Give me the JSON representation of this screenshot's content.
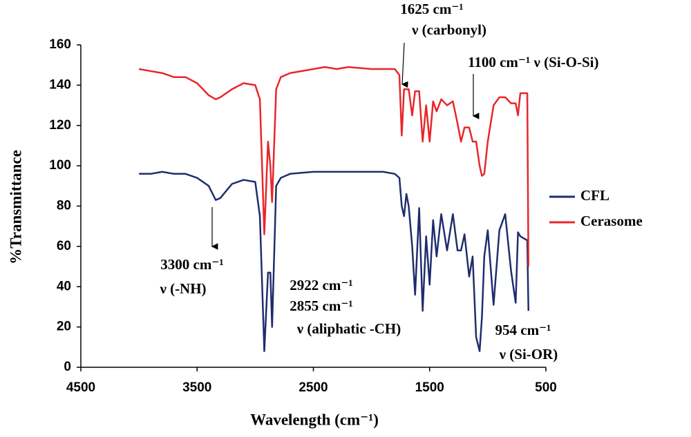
{
  "chart_data": {
    "type": "line",
    "xlabel": "Wavelength (cm⁻¹)",
    "ylabel": "%Transmittance",
    "x": [
      4000,
      3900,
      3800,
      3700,
      3600,
      3500,
      3400,
      3340,
      3300,
      3200,
      3100,
      3000,
      2960,
      2922,
      2890,
      2870,
      2855,
      2820,
      2780,
      2700,
      2500,
      2400,
      2300,
      2200,
      2000,
      1900,
      1800,
      1760,
      1740,
      1720,
      1700,
      1680,
      1650,
      1625,
      1590,
      1560,
      1530,
      1500,
      1470,
      1440,
      1400,
      1350,
      1300,
      1260,
      1230,
      1200,
      1160,
      1130,
      1100,
      1070,
      1050,
      1030,
      1000,
      950,
      900,
      850,
      800,
      760,
      740,
      720,
      660,
      650
    ],
    "series": [
      {
        "name": "CFL",
        "color": "#1f2d6e",
        "values": [
          96,
          96,
          97,
          96,
          96,
          94,
          90,
          83,
          84,
          91,
          93,
          92,
          75,
          8,
          47,
          47,
          20,
          90,
          94,
          96,
          97,
          97,
          97,
          97,
          97,
          97,
          96,
          94,
          80,
          75,
          86,
          80,
          60,
          36,
          79,
          28,
          65,
          41,
          73,
          55,
          76,
          58,
          76,
          58,
          58,
          66,
          45,
          55,
          15,
          8,
          25,
          55,
          68,
          31,
          68,
          76,
          48,
          32,
          67,
          65,
          63,
          28
        ]
      },
      {
        "name": "Cerasome",
        "color": "#e8262a",
        "values": [
          148,
          147,
          146,
          144,
          144,
          141,
          135,
          133,
          134,
          138,
          141,
          140,
          133,
          66,
          112,
          100,
          82,
          138,
          144,
          146,
          148,
          149,
          148,
          149,
          148,
          148,
          148,
          145,
          115,
          138,
          138,
          138,
          125,
          137,
          137,
          112,
          130,
          112,
          132,
          127,
          133,
          130,
          132,
          121,
          112,
          119,
          119,
          112,
          112,
          100,
          95,
          96,
          112,
          130,
          134,
          134,
          131,
          131,
          125,
          136,
          136,
          50
        ]
      }
    ],
    "xlim": [
      4500,
      500
    ],
    "xticks": [
      4500,
      3500,
      2500,
      1500,
      500
    ],
    "ylim": [
      0,
      160
    ],
    "yticks": [
      0,
      20,
      40,
      60,
      80,
      100,
      120,
      140,
      160
    ],
    "annotations": [
      "1625 cm⁻¹",
      "ν (carbonyl)",
      "1100 cm⁻¹ ν (Si-O-Si)",
      "3300 cm⁻¹",
      "ν (-NH)",
      "2922 cm⁻¹",
      "2855 cm⁻¹",
      "ν (aliphatic -CH)",
      "954 cm⁻¹",
      "ν (Si-OR)"
    ]
  }
}
